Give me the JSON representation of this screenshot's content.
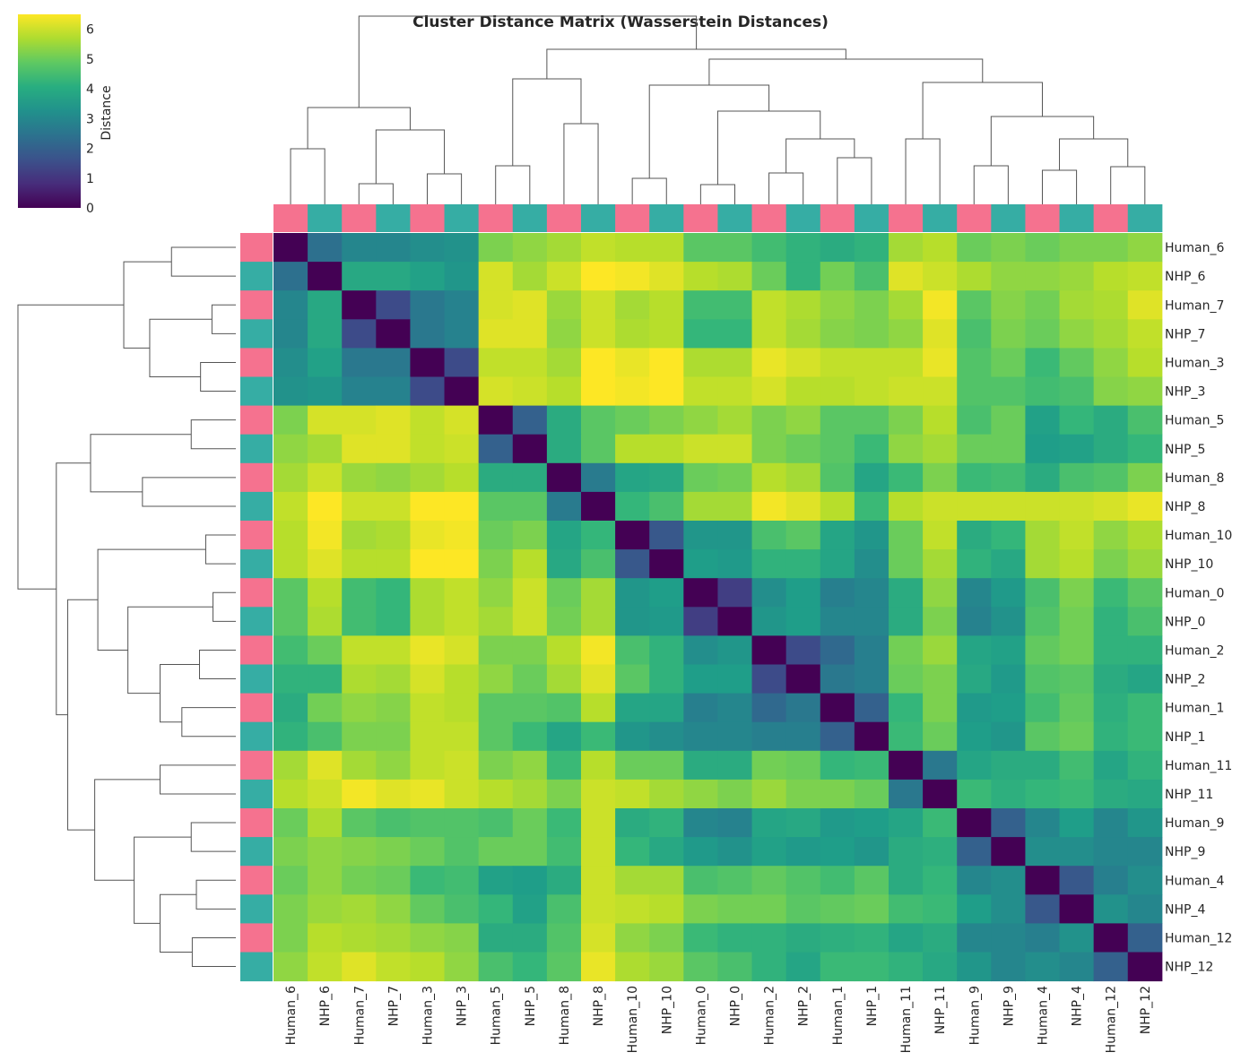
{
  "chart_data": {
    "type": "heatmap",
    "title": "Cluster Distance Matrix (Wasserstein Distances)",
    "colorbar": {
      "label": "Distance",
      "ticks": [
        0,
        1,
        2,
        3,
        4,
        5,
        6
      ],
      "range": [
        0,
        6.5
      ],
      "colormap": "viridis"
    },
    "labels": [
      "Human_6",
      "NHP_6",
      "Human_7",
      "NHP_7",
      "Human_3",
      "NHP_3",
      "Human_5",
      "NHP_5",
      "Human_8",
      "NHP_8",
      "Human_10",
      "NHP_10",
      "Human_0",
      "NHP_0",
      "Human_2",
      "NHP_2",
      "Human_1",
      "NHP_1",
      "Human_11",
      "NHP_11",
      "Human_9",
      "NHP_9",
      "Human_4",
      "NHP_4",
      "Human_12",
      "NHP_12"
    ],
    "species_colors": {
      "Human": "#f5728f",
      "NHP": "#36ada4"
    },
    "matrix": [
      [
        0.0,
        2.4,
        3.0,
        3.0,
        3.2,
        3.3,
        5.2,
        5.4,
        5.6,
        5.9,
        5.8,
        5.8,
        4.8,
        4.8,
        4.5,
        4.2,
        4.0,
        4.2,
        5.6,
        5.8,
        5.0,
        5.2,
        5.0,
        5.2,
        5.2,
        5.4
      ],
      [
        2.4,
        0.0,
        3.9,
        3.9,
        3.7,
        3.4,
        6.1,
        5.6,
        6.0,
        6.5,
        6.4,
        6.2,
        5.8,
        5.7,
        5.0,
        4.2,
        5.1,
        4.6,
        6.2,
        6.0,
        5.7,
        5.4,
        5.4,
        5.5,
        5.8,
        5.9
      ],
      [
        3.0,
        3.9,
        0.0,
        1.5,
        2.6,
        2.9,
        6.1,
        6.2,
        5.5,
        6.0,
        5.6,
        5.8,
        4.5,
        4.5,
        5.9,
        5.7,
        5.4,
        5.2,
        5.6,
        6.4,
        4.8,
        5.3,
        5.1,
        5.6,
        5.7,
        6.2
      ],
      [
        3.0,
        3.9,
        1.5,
        0.0,
        2.6,
        2.9,
        6.2,
        6.2,
        5.4,
        6.0,
        5.7,
        5.8,
        4.3,
        4.3,
        5.9,
        5.6,
        5.3,
        5.2,
        5.4,
        6.2,
        4.6,
        5.2,
        5.0,
        5.4,
        5.6,
        5.9
      ],
      [
        3.2,
        3.7,
        2.6,
        2.6,
        0.0,
        1.5,
        5.9,
        5.9,
        5.6,
        6.5,
        6.3,
        6.5,
        5.7,
        5.7,
        6.3,
        6.1,
        5.9,
        5.9,
        5.9,
        6.3,
        4.7,
        5.0,
        4.4,
        4.9,
        5.4,
        5.8
      ],
      [
        3.3,
        3.4,
        2.9,
        2.9,
        1.5,
        0.0,
        6.1,
        6.0,
        5.8,
        6.5,
        6.4,
        6.5,
        5.9,
        5.9,
        6.1,
        5.8,
        5.8,
        5.9,
        6.0,
        6.0,
        4.7,
        4.7,
        4.5,
        4.6,
        5.3,
        5.4
      ],
      [
        5.2,
        6.1,
        6.1,
        6.2,
        5.9,
        6.1,
        0.0,
        2.0,
        4.0,
        4.8,
        5.0,
        5.2,
        5.4,
        5.6,
        5.2,
        5.4,
        4.8,
        4.8,
        5.2,
        5.8,
        4.6,
        5.0,
        3.7,
        4.3,
        4.0,
        4.6
      ],
      [
        5.4,
        5.6,
        6.2,
        6.2,
        5.9,
        6.0,
        2.0,
        0.0,
        4.0,
        4.8,
        5.8,
        5.8,
        6.0,
        6.0,
        5.2,
        5.0,
        4.8,
        4.4,
        5.4,
        5.6,
        5.0,
        5.0,
        3.6,
        3.7,
        4.0,
        4.3
      ],
      [
        5.6,
        6.0,
        5.5,
        5.4,
        5.6,
        5.8,
        4.0,
        4.0,
        0.0,
        2.7,
        3.8,
        3.9,
        5.0,
        5.1,
        5.8,
        5.6,
        4.7,
        3.8,
        4.4,
        5.2,
        4.4,
        4.5,
        4.0,
        4.6,
        4.7,
        5.2
      ],
      [
        5.9,
        6.5,
        6.0,
        6.0,
        6.5,
        6.5,
        4.8,
        4.8,
        2.7,
        0.0,
        4.3,
        4.6,
        5.6,
        5.6,
        6.4,
        6.2,
        5.8,
        4.4,
        5.8,
        6.0,
        6.0,
        6.0,
        6.0,
        6.0,
        6.1,
        6.3
      ],
      [
        5.8,
        6.4,
        5.6,
        5.7,
        6.3,
        6.4,
        5.0,
        5.2,
        3.8,
        4.3,
        0.0,
        1.8,
        3.4,
        3.4,
        4.6,
        4.8,
        3.8,
        3.4,
        5.0,
        5.9,
        4.0,
        4.3,
        5.6,
        5.9,
        5.4,
        5.7
      ],
      [
        5.8,
        6.2,
        5.8,
        5.8,
        6.5,
        6.5,
        5.2,
        5.8,
        3.9,
        4.6,
        1.8,
        0.0,
        3.6,
        3.5,
        4.2,
        4.2,
        3.8,
        3.2,
        5.0,
        5.6,
        4.2,
        3.9,
        5.6,
        5.8,
        5.2,
        5.5
      ],
      [
        4.8,
        5.8,
        4.5,
        4.3,
        5.7,
        5.9,
        5.4,
        6.0,
        5.0,
        5.6,
        3.4,
        3.6,
        0.0,
        1.2,
        3.2,
        3.6,
        2.8,
        3.0,
        4.0,
        5.4,
        3.0,
        3.5,
        4.6,
        5.2,
        4.4,
        4.8
      ],
      [
        4.8,
        5.7,
        4.5,
        4.3,
        5.7,
        5.9,
        5.6,
        6.0,
        5.1,
        5.6,
        3.4,
        3.5,
        1.2,
        0.0,
        3.4,
        3.6,
        3.0,
        3.0,
        4.0,
        5.2,
        2.9,
        3.3,
        4.7,
        5.1,
        4.2,
        4.6
      ],
      [
        4.5,
        5.0,
        5.9,
        5.9,
        6.3,
        6.1,
        5.2,
        5.2,
        5.8,
        6.4,
        4.6,
        4.2,
        3.2,
        3.4,
        0.0,
        1.5,
        2.2,
        2.8,
        5.1,
        5.5,
        3.8,
        3.7,
        4.9,
        5.1,
        4.2,
        4.2
      ],
      [
        4.2,
        4.2,
        5.7,
        5.6,
        6.1,
        5.8,
        5.4,
        5.0,
        5.6,
        6.2,
        4.8,
        4.2,
        3.6,
        3.6,
        1.5,
        0.0,
        2.6,
        2.8,
        5.0,
        5.2,
        3.9,
        3.5,
        4.7,
        4.8,
        4.0,
        3.8
      ],
      [
        4.0,
        5.1,
        5.4,
        5.3,
        5.9,
        5.8,
        4.8,
        4.8,
        4.7,
        5.8,
        3.8,
        3.8,
        2.8,
        3.0,
        2.2,
        2.6,
        0.0,
        2.0,
        4.3,
        5.2,
        3.5,
        3.6,
        4.5,
        4.9,
        4.1,
        4.4
      ],
      [
        4.2,
        4.6,
        5.2,
        5.2,
        5.9,
        5.9,
        4.8,
        4.4,
        3.8,
        4.4,
        3.4,
        3.2,
        3.0,
        3.0,
        2.8,
        2.8,
        2.0,
        0.0,
        4.4,
        5.0,
        3.6,
        3.4,
        4.8,
        5.0,
        4.2,
        4.4
      ],
      [
        5.6,
        6.2,
        5.6,
        5.4,
        5.9,
        6.0,
        5.2,
        5.4,
        4.4,
        5.8,
        5.0,
        5.0,
        4.0,
        4.0,
        5.1,
        5.0,
        4.3,
        4.4,
        0.0,
        2.6,
        3.8,
        4.0,
        4.0,
        4.5,
        3.8,
        4.2
      ],
      [
        5.8,
        6.0,
        6.4,
        6.2,
        6.3,
        6.0,
        5.8,
        5.6,
        5.2,
        6.0,
        5.9,
        5.6,
        5.4,
        5.2,
        5.5,
        5.2,
        5.2,
        5.0,
        2.6,
        0.0,
        4.4,
        4.1,
        4.3,
        4.4,
        4.0,
        3.9
      ],
      [
        5.0,
        5.7,
        4.8,
        4.6,
        4.7,
        4.7,
        4.6,
        5.0,
        4.4,
        6.0,
        4.0,
        4.2,
        3.0,
        2.9,
        3.8,
        3.9,
        3.5,
        3.6,
        3.8,
        4.4,
        0.0,
        2.0,
        3.0,
        3.6,
        3.0,
        3.4
      ],
      [
        5.2,
        5.4,
        5.3,
        5.2,
        5.0,
        4.7,
        5.0,
        5.0,
        4.5,
        6.0,
        4.3,
        3.9,
        3.5,
        3.3,
        3.7,
        3.5,
        3.6,
        3.4,
        4.0,
        4.1,
        2.0,
        0.0,
        3.2,
        3.2,
        3.0,
        3.0
      ],
      [
        5.0,
        5.4,
        5.1,
        5.0,
        4.4,
        4.5,
        3.7,
        3.6,
        4.0,
        6.0,
        5.6,
        5.6,
        4.6,
        4.7,
        4.9,
        4.7,
        4.5,
        4.8,
        4.0,
        4.3,
        3.0,
        3.2,
        0.0,
        1.8,
        2.8,
        3.2
      ],
      [
        5.2,
        5.5,
        5.6,
        5.4,
        4.9,
        4.6,
        4.3,
        3.7,
        4.6,
        6.0,
        5.9,
        5.8,
        5.2,
        5.1,
        5.1,
        4.8,
        4.9,
        5.0,
        4.5,
        4.4,
        3.6,
        3.2,
        1.8,
        0.0,
        3.3,
        3.0
      ],
      [
        5.2,
        5.8,
        5.7,
        5.6,
        5.4,
        5.3,
        4.0,
        4.0,
        4.7,
        6.1,
        5.4,
        5.2,
        4.4,
        4.2,
        4.2,
        4.0,
        4.1,
        4.2,
        3.8,
        4.0,
        3.0,
        3.0,
        2.8,
        3.3,
        0.0,
        2.0
      ],
      [
        5.4,
        5.9,
        6.2,
        5.9,
        5.8,
        5.4,
        4.6,
        4.3,
        4.8,
        6.3,
        5.7,
        5.5,
        4.8,
        4.6,
        4.2,
        3.8,
        4.4,
        4.4,
        4.2,
        3.9,
        3.4,
        3.0,
        3.2,
        3.0,
        2.0,
        0.0
      ]
    ]
  }
}
